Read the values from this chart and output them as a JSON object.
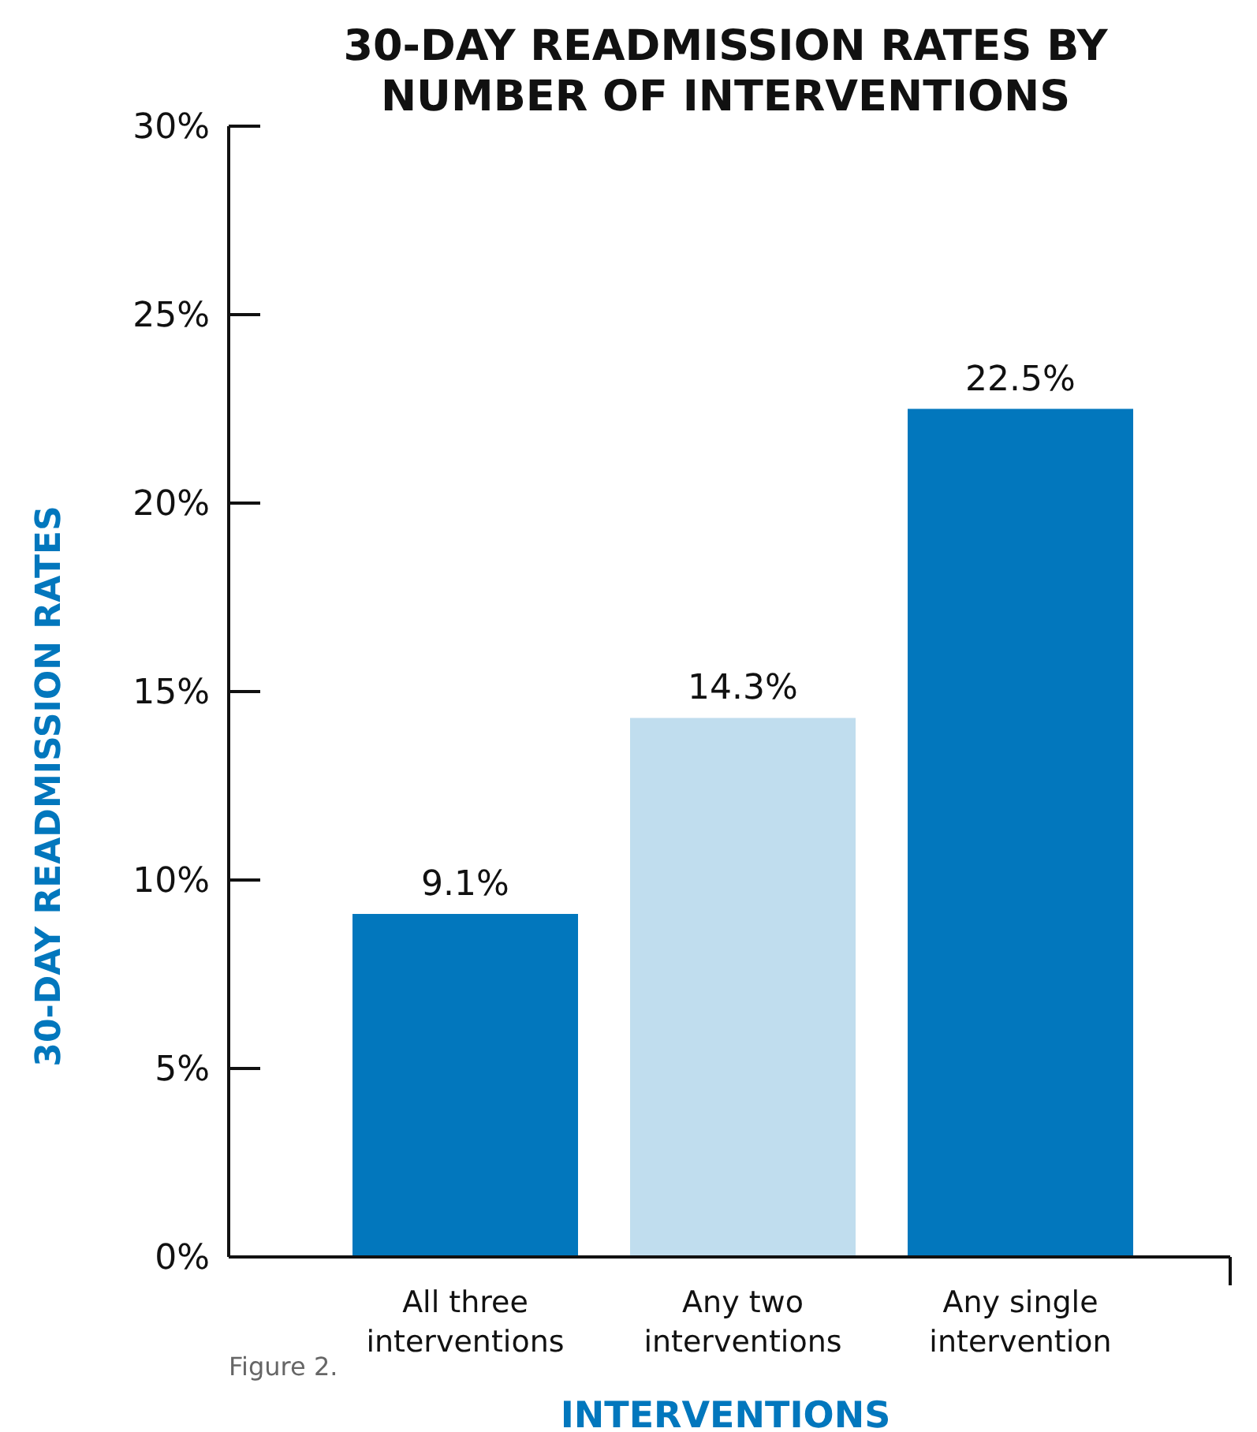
{
  "chart_data": {
    "type": "bar",
    "title": "30-DAY READMISSION RATES BY NUMBER OF INTERVENTIONS",
    "xlabel": "INTERVENTIONS",
    "ylabel": "30-DAY READMISSION RATES",
    "categories": [
      "All three interventions",
      "Any two interventions",
      "Any single intervention"
    ],
    "values": [
      9.1,
      14.3,
      22.5
    ],
    "colors": [
      "#0277bd",
      "#c0ddee",
      "#0277bd"
    ],
    "value_labels": [
      "9.1%",
      "14.3%",
      "22.5%"
    ],
    "ylim": [
      0,
      30
    ],
    "yticks": [
      {
        "value": 0,
        "label": "0%"
      },
      {
        "value": 5,
        "label": "5%"
      },
      {
        "value": 10,
        "label": "10%"
      },
      {
        "value": 15,
        "label": "15%"
      },
      {
        "value": 20,
        "label": "20%"
      },
      {
        "value": 25,
        "label": "25%"
      },
      {
        "value": 30,
        "label": "30%"
      }
    ],
    "grid": false,
    "annotations": [
      "Figure 2."
    ]
  }
}
